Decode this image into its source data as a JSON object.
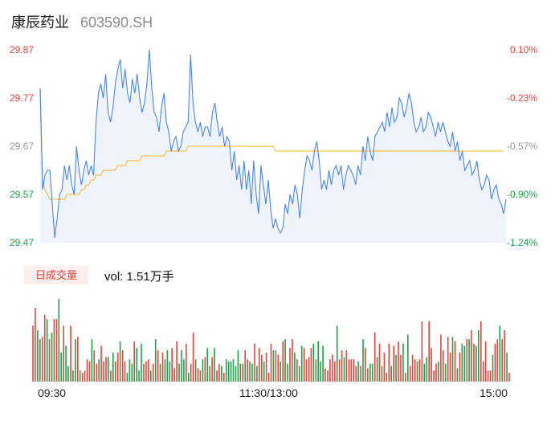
{
  "header": {
    "name": "康辰药业",
    "code": "603590.SH"
  },
  "price_axis": {
    "ticks": [
      "29.87",
      "29.77",
      "29.67",
      "29.57",
      "29.47"
    ],
    "values": [
      29.87,
      29.77,
      29.67,
      29.57,
      29.47
    ],
    "tick_colors": [
      "#e0463c",
      "#e0463c",
      "#999999",
      "#1aa34a",
      "#1aa34a"
    ]
  },
  "pct_axis": {
    "ticks": [
      "0.10%",
      "-0.23%",
      "-0.57%",
      "-0.90%",
      "-1.24%"
    ],
    "tick_colors": [
      "#e0463c",
      "#e0463c",
      "#999999",
      "#1aa34a",
      "#1aa34a"
    ]
  },
  "volume_panel": {
    "badge": "日成交量",
    "vol_label": "vol: 1.51万手"
  },
  "time_axis": {
    "ticks": [
      "09:30",
      "11:30/13:00",
      "15:00"
    ]
  },
  "colors": {
    "price_line": "#4a86e8",
    "avg_line": "#f5c24a",
    "up": "#e0463c",
    "down": "#1aa34a",
    "area": "#eef3fc"
  },
  "chart_data": {
    "type": "line",
    "x_range": [
      "09:30",
      "15:00"
    ],
    "ylim": [
      29.47,
      29.87
    ],
    "series": [
      {
        "values": [
          29.79,
          29.58,
          29.61,
          29.62,
          29.62,
          29.55,
          29.48,
          29.52,
          29.57,
          29.58,
          29.63,
          29.6,
          29.63,
          29.59,
          29.57,
          29.67,
          29.62,
          29.59,
          29.62,
          29.64,
          29.61,
          29.63,
          29.61,
          29.72,
          29.78,
          29.8,
          29.77,
          29.82,
          29.74,
          29.72,
          29.75,
          29.8,
          29.83,
          29.85,
          29.79,
          29.83,
          29.78,
          29.76,
          29.81,
          29.78,
          29.82,
          29.77,
          29.74,
          29.76,
          29.8,
          29.87,
          29.79,
          29.74,
          29.73,
          29.7,
          29.75,
          29.78,
          29.72,
          29.7,
          29.66,
          29.68,
          29.69,
          29.66,
          29.67,
          29.7,
          29.71,
          29.72,
          29.86,
          29.76,
          29.72,
          29.7,
          29.72,
          29.69,
          29.71,
          29.71,
          29.69,
          29.74,
          29.76,
          29.72,
          29.69,
          29.71,
          29.67,
          29.69,
          29.68,
          29.62,
          29.66,
          29.6,
          29.63,
          29.58,
          29.64,
          29.58,
          29.62,
          29.55,
          29.64,
          29.57,
          29.53,
          29.63,
          29.59,
          29.55,
          29.6,
          29.54,
          29.5,
          29.52,
          29.5,
          29.49,
          29.5,
          29.55,
          29.53,
          29.57,
          29.55,
          29.59,
          29.57,
          29.52,
          29.58,
          29.62,
          29.65,
          29.64,
          29.62,
          29.66,
          29.68,
          29.64,
          29.58,
          29.6,
          29.58,
          29.62,
          29.59,
          29.62,
          29.63,
          29.61,
          29.63,
          29.58,
          29.61,
          29.63,
          29.62,
          29.61,
          29.59,
          29.63,
          29.61,
          29.67,
          29.64,
          29.69,
          29.66,
          29.64,
          29.69,
          29.7,
          29.71,
          29.72,
          29.7,
          29.74,
          29.71,
          29.75,
          29.72,
          29.73,
          29.77,
          29.76,
          29.73,
          29.75,
          29.78,
          29.76,
          29.72,
          29.7,
          29.71,
          29.73,
          29.7,
          29.71,
          29.74,
          29.73,
          29.71,
          29.69,
          29.72,
          29.7,
          29.72,
          29.7,
          29.68,
          29.67,
          29.7,
          29.66,
          29.68,
          29.64,
          29.66,
          29.62,
          29.63,
          29.64,
          29.61,
          29.62,
          29.64,
          29.6,
          29.58,
          29.59,
          29.61,
          29.6,
          29.56,
          29.58,
          29.59,
          29.56,
          29.55,
          29.53,
          29.56
        ]
      },
      {
        "values": [
          29.79,
          29.6,
          29.58,
          29.57,
          29.56,
          29.56,
          29.56,
          29.56,
          29.56,
          29.56,
          29.56,
          29.57,
          29.57,
          29.57,
          29.57,
          29.57,
          29.57,
          29.58,
          29.58,
          29.59,
          29.59,
          29.6,
          29.6,
          29.61,
          29.61,
          29.61,
          29.62,
          29.62,
          29.62,
          29.62,
          29.62,
          29.62,
          29.63,
          29.63,
          29.63,
          29.63,
          29.64,
          29.64,
          29.64,
          29.64,
          29.64,
          29.64,
          29.65,
          29.65,
          29.65,
          29.65,
          29.65,
          29.65,
          29.65,
          29.65,
          29.65,
          29.65,
          29.66,
          29.66,
          29.66,
          29.66,
          29.66,
          29.66,
          29.66,
          29.66,
          29.66,
          29.67,
          29.67,
          29.67,
          29.67,
          29.67,
          29.67,
          29.67,
          29.67,
          29.67,
          29.67,
          29.67,
          29.67,
          29.67,
          29.67,
          29.67,
          29.67,
          29.67,
          29.67,
          29.67,
          29.67,
          29.67,
          29.67,
          29.67,
          29.67,
          29.67,
          29.67,
          29.67,
          29.67,
          29.67,
          29.67,
          29.67,
          29.67,
          29.67,
          29.67,
          29.67,
          29.67,
          29.66,
          29.66,
          29.66,
          29.66,
          29.66,
          29.66,
          29.66,
          29.66,
          29.66,
          29.66,
          29.66,
          29.66,
          29.66,
          29.66,
          29.66,
          29.66,
          29.66,
          29.66,
          29.66,
          29.66,
          29.66,
          29.66,
          29.66,
          29.66,
          29.66,
          29.66,
          29.66,
          29.66,
          29.66,
          29.66,
          29.66,
          29.66,
          29.66,
          29.66,
          29.66,
          29.66,
          29.66,
          29.66,
          29.66,
          29.66,
          29.66,
          29.66,
          29.66,
          29.66,
          29.66,
          29.66,
          29.66,
          29.66,
          29.66,
          29.66,
          29.66,
          29.66,
          29.66,
          29.66,
          29.66,
          29.66,
          29.66,
          29.66,
          29.66,
          29.66,
          29.66,
          29.66,
          29.66,
          29.66,
          29.66,
          29.66,
          29.66,
          29.66,
          29.66,
          29.66,
          29.66,
          29.66,
          29.66,
          29.66,
          29.66,
          29.66,
          29.66,
          29.66,
          29.66,
          29.66,
          29.66,
          29.66,
          29.66,
          29.66,
          29.66,
          29.66,
          29.66,
          29.66,
          29.66,
          29.66,
          29.66,
          29.66,
          29.66,
          29.66,
          29.66
        ]
      }
    ],
    "volume": [
      25,
      33,
      23,
      19,
      20,
      30,
      28,
      19,
      22,
      28,
      28,
      37,
      13,
      25,
      16,
      7,
      25,
      5,
      19,
      20,
      5,
      4,
      5,
      10,
      9,
      19,
      14,
      8,
      10,
      16,
      9,
      11,
      11,
      5,
      13,
      9,
      13,
      18,
      14,
      9,
      4,
      10,
      8,
      18,
      15,
      5,
      17,
      8,
      9,
      10,
      5,
      8,
      19,
      14,
      8,
      13,
      10,
      14,
      9,
      15,
      6,
      18,
      8,
      14,
      10,
      17,
      4,
      8,
      22,
      10,
      6,
      5,
      10,
      11,
      15,
      7,
      11,
      15,
      5,
      8,
      7,
      4,
      10,
      9,
      9,
      10,
      7,
      14,
      8,
      8,
      14,
      10,
      9,
      8,
      17,
      7,
      15,
      12,
      9,
      13,
      4,
      17,
      14,
      14,
      12,
      9,
      18,
      19,
      8,
      15,
      19,
      13,
      10,
      7,
      16,
      15,
      10,
      11,
      15,
      17,
      10,
      18,
      9,
      16,
      6,
      5,
      10,
      12,
      9,
      25,
      10,
      14,
      11,
      14,
      10,
      10,
      10,
      7,
      9,
      7,
      19,
      15,
      6,
      8,
      8,
      22,
      11,
      17,
      7,
      13,
      4,
      17,
      7,
      16,
      12,
      18,
      12,
      17,
      4,
      21,
      7,
      12,
      10,
      9,
      10,
      27,
      8,
      11,
      27,
      15,
      5,
      8,
      9,
      21,
      14,
      8,
      20,
      13,
      20,
      18,
      6,
      13,
      17,
      16,
      19,
      19,
      23,
      17,
      16,
      23,
      27,
      9,
      18,
      5,
      5,
      12,
      17,
      19,
      25,
      19,
      23,
      13,
      4
    ],
    "volume_up": [
      1,
      1,
      0,
      0,
      1,
      1,
      0,
      1,
      0,
      1,
      1,
      0,
      0,
      1,
      0,
      0,
      1,
      0,
      0,
      1,
      0,
      1,
      1,
      1,
      1,
      0,
      1,
      1,
      0,
      1,
      1,
      1,
      0,
      1,
      0,
      1,
      1,
      0,
      1,
      1,
      0,
      0,
      0,
      1,
      0,
      0,
      0,
      1,
      1,
      1,
      0,
      1,
      0,
      1,
      0,
      1,
      0,
      0,
      0,
      1,
      1,
      1,
      0,
      0,
      0,
      1,
      0,
      1,
      1,
      0,
      1,
      1,
      0,
      1,
      0,
      1,
      1,
      0,
      1,
      1,
      0,
      1,
      0,
      0,
      0,
      0,
      0,
      0,
      1,
      0,
      1,
      1,
      0,
      0,
      1,
      0,
      1,
      1,
      0,
      1,
      1,
      1,
      0,
      1,
      1,
      0,
      1,
      0,
      0,
      1,
      1,
      0,
      1,
      0,
      0,
      1,
      1,
      1,
      1,
      0,
      1,
      0,
      0,
      0,
      1,
      1,
      1,
      1,
      1,
      0,
      1,
      1,
      0,
      1,
      1,
      1,
      1,
      1,
      0,
      1,
      0,
      1,
      1,
      0,
      0,
      1,
      0,
      1,
      0,
      1,
      1,
      1,
      0,
      1,
      0,
      1,
      1,
      0,
      1,
      0,
      1,
      1,
      1,
      0,
      1,
      1,
      0,
      0,
      1,
      1,
      1,
      1,
      0,
      1,
      1,
      0,
      1,
      1,
      0,
      1,
      0,
      1,
      0,
      0,
      1,
      0,
      1,
      1,
      0,
      0,
      1,
      1,
      1,
      1,
      1,
      0,
      1,
      1,
      0,
      1,
      1,
      0,
      1
    ]
  }
}
